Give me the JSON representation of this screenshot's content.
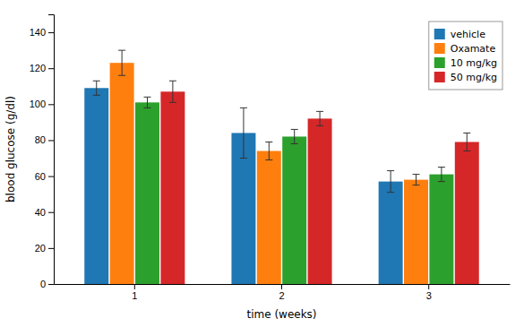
{
  "chart_data": {
    "type": "bar",
    "xlabel": "time (weeks)",
    "ylabel": "blood glucose (g/dl)",
    "categories": [
      "1",
      "2",
      "3"
    ],
    "series": [
      {
        "name": "vehicle",
        "values": [
          109,
          84,
          57
        ],
        "errors": [
          4,
          14,
          6
        ]
      },
      {
        "name": "Oxamate",
        "values": [
          123,
          74,
          58
        ],
        "errors": [
          7,
          5,
          3
        ]
      },
      {
        "name": "10 mg/kg",
        "values": [
          101,
          82,
          61
        ],
        "errors": [
          3,
          4,
          4
        ]
      },
      {
        "name": "50 mg/kg",
        "values": [
          107,
          92,
          79
        ],
        "errors": [
          6,
          4,
          5
        ]
      }
    ],
    "ylim": [
      0,
      150
    ],
    "yticks": [
      0,
      20,
      40,
      60,
      80,
      100,
      120,
      140
    ],
    "grid": false,
    "legend": "upper right"
  }
}
